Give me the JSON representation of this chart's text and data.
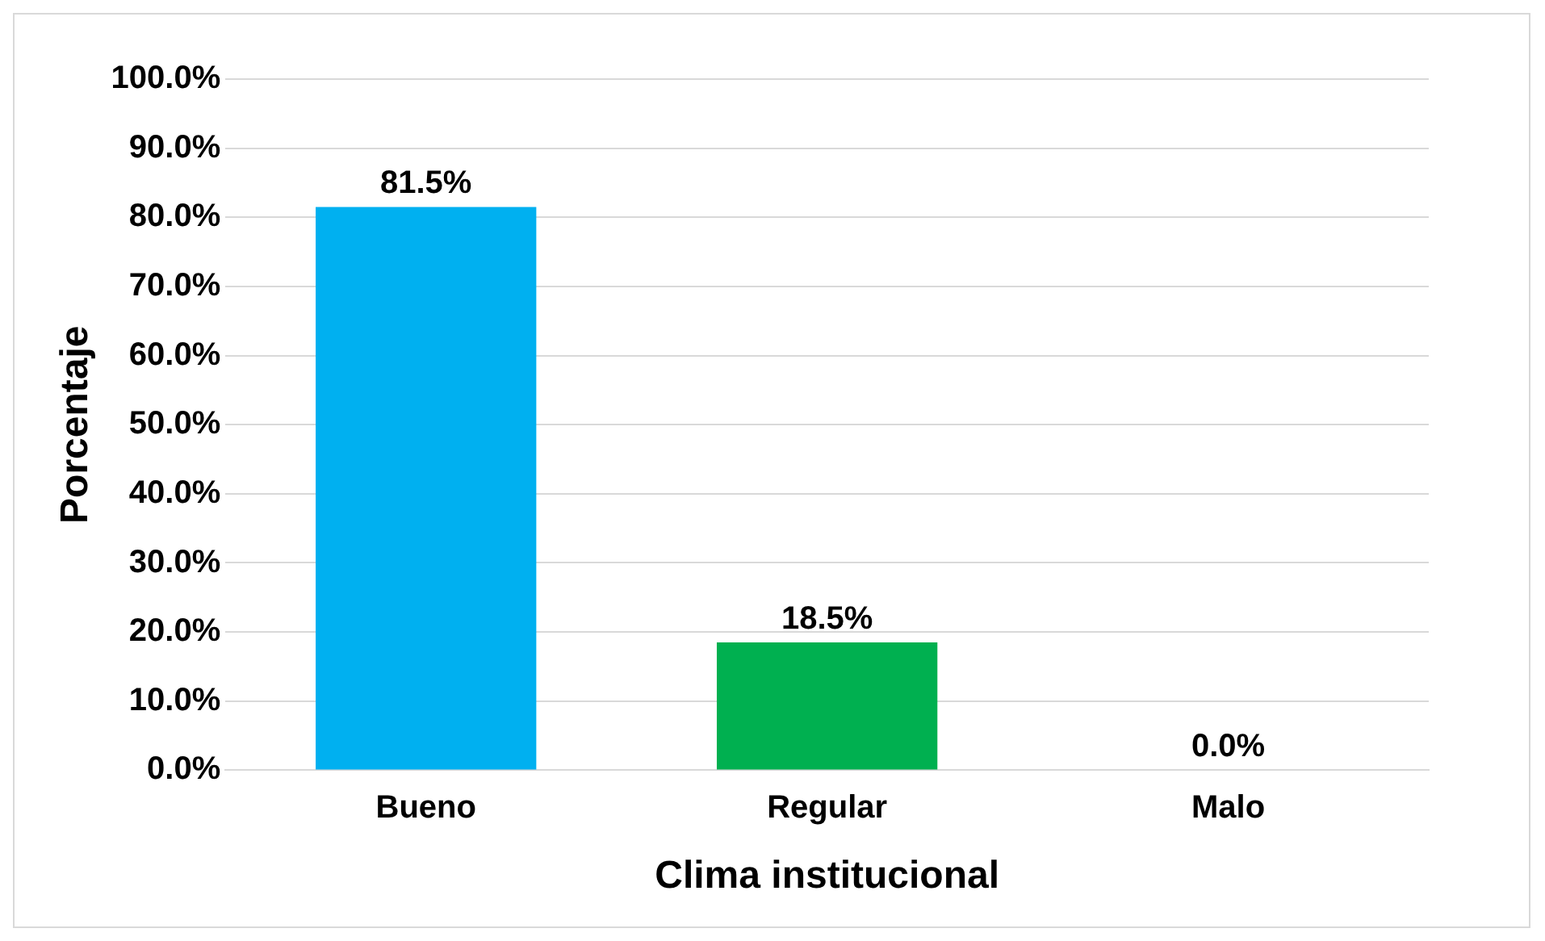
{
  "chart_data": {
    "type": "bar",
    "xlabel": "Clima institucional",
    "ylabel": "Porcentaje",
    "categories": [
      "Bueno",
      "Regular",
      "Malo"
    ],
    "values": [
      81.5,
      18.5,
      0.0
    ],
    "colors": [
      "#00b0f0",
      "#00b050",
      "#c00000"
    ],
    "value_labels": [
      "81.5%",
      "18.5%",
      "0.0%"
    ],
    "ylim": [
      0,
      100
    ],
    "yticks": [
      {
        "value": 0,
        "label": "0.0%"
      },
      {
        "value": 10,
        "label": "10.0%"
      },
      {
        "value": 20,
        "label": "20.0%"
      },
      {
        "value": 30,
        "label": "30.0%"
      },
      {
        "value": 40,
        "label": "40.0%"
      },
      {
        "value": 50,
        "label": "50.0%"
      },
      {
        "value": 60,
        "label": "60.0%"
      },
      {
        "value": 70,
        "label": "70.0%"
      },
      {
        "value": 80,
        "label": "80.0%"
      },
      {
        "value": 90,
        "label": "90.0%"
      },
      {
        "value": 100,
        "label": "100.0%"
      }
    ],
    "grid": "y",
    "legend": false
  }
}
